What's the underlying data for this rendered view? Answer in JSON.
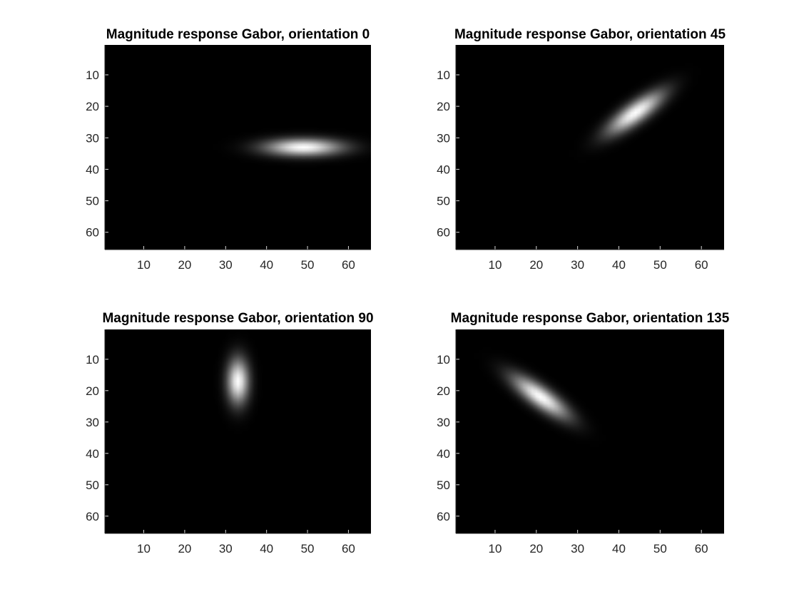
{
  "chart_data": [
    {
      "type": "heatmap",
      "title": "Magnitude response Gabor, orientation 0",
      "xlabel": "",
      "ylabel": "",
      "xlim": [
        0.5,
        65.5
      ],
      "ylim": [
        0.5,
        65.5
      ],
      "y_reversed": true,
      "xticks": [
        10,
        20,
        30,
        40,
        50,
        60
      ],
      "yticks": [
        10,
        20,
        30,
        40,
        50,
        60
      ],
      "colormap": "gray",
      "background": "#000000",
      "blob": {
        "center_x": 49,
        "center_y": 33,
        "sigma_major": 6.5,
        "sigma_minor": 1.9,
        "angle_deg": 0,
        "peak": 1.0
      }
    },
    {
      "type": "heatmap",
      "title": "Magnitude response Gabor, orientation 45",
      "xlabel": "",
      "ylabel": "",
      "xlim": [
        0.5,
        65.5
      ],
      "ylim": [
        0.5,
        65.5
      ],
      "y_reversed": true,
      "xticks": [
        10,
        20,
        30,
        40,
        50,
        60
      ],
      "yticks": [
        10,
        20,
        30,
        40,
        50,
        60
      ],
      "colormap": "gray",
      "background": "#000000",
      "blob": {
        "center_x": 44,
        "center_y": 22,
        "sigma_major": 6.2,
        "sigma_minor": 2.0,
        "angle_deg": -45,
        "peak": 1.0
      }
    },
    {
      "type": "heatmap",
      "title": "Magnitude response Gabor, orientation 90",
      "xlabel": "",
      "ylabel": "",
      "xlim": [
        0.5,
        65.5
      ],
      "ylim": [
        0.5,
        65.5
      ],
      "y_reversed": true,
      "xticks": [
        10,
        20,
        30,
        40,
        50,
        60
      ],
      "yticks": [
        10,
        20,
        30,
        40,
        50,
        60
      ],
      "colormap": "gray",
      "background": "#000000",
      "blob": {
        "center_x": 33,
        "center_y": 17,
        "sigma_major": 5.0,
        "sigma_minor": 1.8,
        "angle_deg": 90,
        "peak": 1.0
      }
    },
    {
      "type": "heatmap",
      "title": "Magnitude response Gabor, orientation 135",
      "xlabel": "",
      "ylabel": "",
      "xlim": [
        0.5,
        65.5
      ],
      "ylim": [
        0.5,
        65.5
      ],
      "y_reversed": true,
      "xticks": [
        10,
        20,
        30,
        40,
        50,
        60
      ],
      "yticks": [
        10,
        20,
        30,
        40,
        50,
        60
      ],
      "colormap": "gray",
      "background": "#000000",
      "blob": {
        "center_x": 21,
        "center_y": 22,
        "sigma_major": 6.2,
        "sigma_minor": 2.0,
        "angle_deg": 45,
        "peak": 1.0
      }
    }
  ],
  "colors": {
    "figure_background": "#ffffff",
    "axis_color": "#262626",
    "title_color": "#000000"
  }
}
